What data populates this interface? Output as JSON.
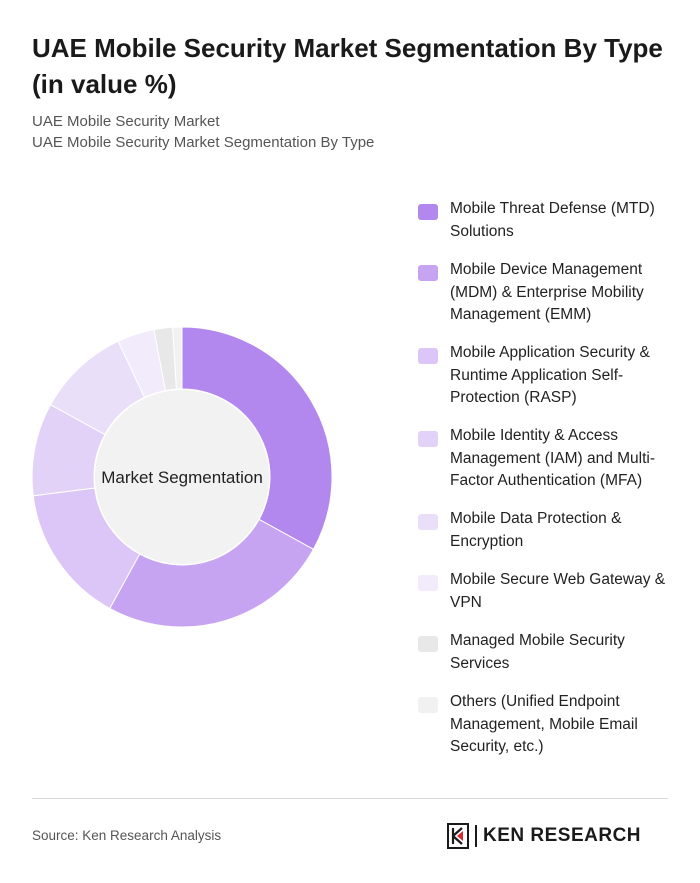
{
  "title": "UAE Mobile Security Market Segmentation By Type (in value %)",
  "subtitle_1": "UAE Mobile Security Market",
  "subtitle_2": "UAE Mobile Security Market Segmentation By Type",
  "source": "Source: Ken Research Analysis",
  "brand": {
    "name": "KEN RESEARCH",
    "logo_icon": "ken-research-k-logo"
  },
  "chart_data": {
    "type": "pie",
    "variant": "donut",
    "center_label": "Market Segmentation",
    "legend_position": "right",
    "slices": [
      {
        "label": "Mobile Threat Defense (MTD) Solutions",
        "value": 33,
        "color": "#b388ee"
      },
      {
        "label": "Mobile Device Management (MDM) & Enterprise Mobility Management (EMM)",
        "value": 25,
        "color": "#c7a4f2"
      },
      {
        "label": "Mobile Application Security & Runtime Application Self-Protection (RASP)",
        "value": 15,
        "color": "#dcc5f7"
      },
      {
        "label": "Mobile Identity & Access Management (IAM) and Multi-Factor Authentication (MFA)",
        "value": 10,
        "color": "#e3d2f8"
      },
      {
        "label": "Mobile Data Protection & Encryption",
        "value": 10,
        "color": "#eadff9"
      },
      {
        "label": "Mobile Secure Web Gateway & VPN",
        "value": 4,
        "color": "#f1ebfb"
      },
      {
        "label": "Managed Mobile Security Services",
        "value": 2,
        "color": "#e8e8e8"
      },
      {
        "label": "Others (Unified Endpoint Management, Mobile Email Security, etc.)",
        "value": 1,
        "color": "#f1f1f1"
      }
    ]
  }
}
